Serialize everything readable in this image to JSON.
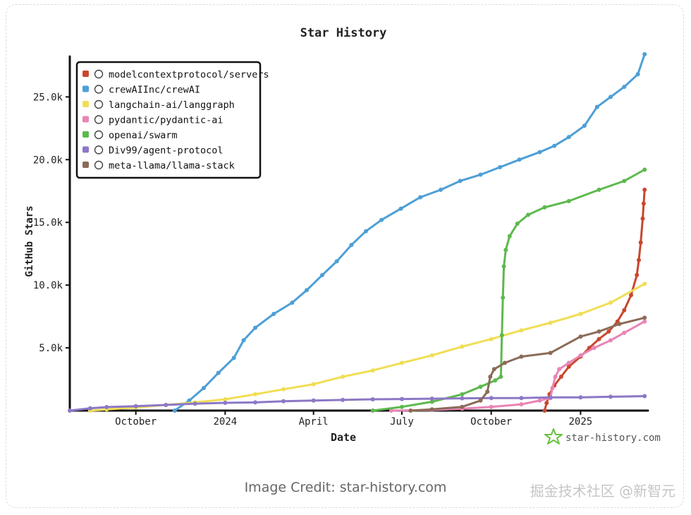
{
  "page": {
    "credit": "Image Credit: star-history.com",
    "watermark": "掘金技术社区 @新智元"
  },
  "brand": {
    "label": "star-history.com",
    "color": "#6ac144"
  },
  "chart_data": {
    "type": "line",
    "title": "Star History",
    "xlabel": "Date",
    "ylabel": "GitHub Stars",
    "x_unit": "date",
    "xlim": [
      "2023-07-25",
      "2025-03-10"
    ],
    "ylim": [
      0,
      28000
    ],
    "y_ticks": [
      5000,
      10000,
      15000,
      20000,
      25000
    ],
    "y_tick_labels": [
      "5.0k",
      "10.0k",
      "15.0k",
      "20.0k",
      "25.0k"
    ],
    "x_ticks": [
      "2023-10-01",
      "2024-01-01",
      "2024-04-01",
      "2024-07-01",
      "2024-10-01",
      "2025-01-01"
    ],
    "x_tick_labels": [
      "October",
      "2024",
      "April",
      "July",
      "October",
      "2025"
    ],
    "grid": false,
    "legend_position": "top-left",
    "series": [
      {
        "name": "modelcontextprotocol/servers",
        "color": "#c9472e",
        "icon": "mcp-icon",
        "points": [
          [
            "2024-11-25",
            0
          ],
          [
            "2024-11-27",
            600
          ],
          [
            "2024-11-30",
            1300
          ],
          [
            "2024-12-05",
            2000
          ],
          [
            "2024-12-12",
            2700
          ],
          [
            "2024-12-20",
            3500
          ],
          [
            "2025-01-01",
            4300
          ],
          [
            "2025-01-10",
            5000
          ],
          [
            "2025-01-20",
            5700
          ],
          [
            "2025-01-30",
            6300
          ],
          [
            "2025-02-08",
            7100
          ],
          [
            "2025-02-15",
            8000
          ],
          [
            "2025-02-22",
            9200
          ],
          [
            "2025-02-28",
            10800
          ],
          [
            "2025-03-02",
            12000
          ],
          [
            "2025-03-04",
            13400
          ],
          [
            "2025-03-06",
            15300
          ],
          [
            "2025-03-07",
            16500
          ],
          [
            "2025-03-08",
            17600
          ]
        ]
      },
      {
        "name": "crewAIInc/crewAI",
        "color": "#4d9fd6",
        "icon": "crewai-icon",
        "points": [
          [
            "2023-11-10",
            0
          ],
          [
            "2023-11-25",
            800
          ],
          [
            "2023-12-10",
            1800
          ],
          [
            "2023-12-25",
            3000
          ],
          [
            "2024-01-10",
            4200
          ],
          [
            "2024-01-20",
            5600
          ],
          [
            "2024-02-01",
            6600
          ],
          [
            "2024-02-20",
            7700
          ],
          [
            "2024-03-10",
            8600
          ],
          [
            "2024-03-25",
            9600
          ],
          [
            "2024-04-10",
            10800
          ],
          [
            "2024-04-25",
            11900
          ],
          [
            "2024-05-10",
            13200
          ],
          [
            "2024-05-25",
            14300
          ],
          [
            "2024-06-10",
            15200
          ],
          [
            "2024-06-30",
            16100
          ],
          [
            "2024-07-20",
            17000
          ],
          [
            "2024-08-10",
            17600
          ],
          [
            "2024-08-30",
            18300
          ],
          [
            "2024-09-20",
            18800
          ],
          [
            "2024-10-10",
            19400
          ],
          [
            "2024-10-30",
            20000
          ],
          [
            "2024-11-20",
            20600
          ],
          [
            "2024-12-05",
            21100
          ],
          [
            "2024-12-20",
            21800
          ],
          [
            "2025-01-05",
            22700
          ],
          [
            "2025-01-18",
            24200
          ],
          [
            "2025-02-01",
            25000
          ],
          [
            "2025-02-15",
            25800
          ],
          [
            "2025-03-01",
            26800
          ],
          [
            "2025-03-08",
            28400
          ]
        ]
      },
      {
        "name": "langchain-ai/langgraph",
        "color": "#f0de55",
        "icon": "langgraph-icon",
        "points": [
          [
            "2023-08-15",
            0
          ],
          [
            "2023-09-01",
            100
          ],
          [
            "2023-10-01",
            250
          ],
          [
            "2023-11-01",
            450
          ],
          [
            "2023-12-01",
            650
          ],
          [
            "2024-01-01",
            900
          ],
          [
            "2024-02-01",
            1300
          ],
          [
            "2024-03-01",
            1700
          ],
          [
            "2024-04-01",
            2100
          ],
          [
            "2024-05-01",
            2700
          ],
          [
            "2024-06-01",
            3200
          ],
          [
            "2024-07-01",
            3800
          ],
          [
            "2024-08-01",
            4400
          ],
          [
            "2024-09-01",
            5100
          ],
          [
            "2024-10-01",
            5700
          ],
          [
            "2024-11-01",
            6400
          ],
          [
            "2024-12-01",
            7000
          ],
          [
            "2025-01-01",
            7700
          ],
          [
            "2025-02-01",
            8600
          ],
          [
            "2025-03-08",
            10100
          ]
        ]
      },
      {
        "name": "pydantic/pydantic-ai",
        "color": "#e885b5",
        "icon": "pydantic-icon",
        "points": [
          [
            "2024-06-20",
            0
          ],
          [
            "2024-08-01",
            50
          ],
          [
            "2024-09-01",
            150
          ],
          [
            "2024-10-01",
            300
          ],
          [
            "2024-11-01",
            500
          ],
          [
            "2024-11-20",
            800
          ],
          [
            "2024-12-01",
            1000
          ],
          [
            "2024-12-03",
            1800
          ],
          [
            "2024-12-06",
            2700
          ],
          [
            "2024-12-10",
            3300
          ],
          [
            "2024-12-20",
            3800
          ],
          [
            "2025-01-01",
            4400
          ],
          [
            "2025-01-15",
            5000
          ],
          [
            "2025-02-01",
            5600
          ],
          [
            "2025-02-15",
            6200
          ],
          [
            "2025-03-08",
            7100
          ]
        ]
      },
      {
        "name": "openai/swarm",
        "color": "#5db94e",
        "icon": "openai-icon",
        "points": [
          [
            "2024-06-01",
            0
          ],
          [
            "2024-07-01",
            300
          ],
          [
            "2024-08-01",
            700
          ],
          [
            "2024-09-01",
            1300
          ],
          [
            "2024-09-20",
            1900
          ],
          [
            "2024-10-05",
            2400
          ],
          [
            "2024-10-11",
            2700
          ],
          [
            "2024-10-12",
            6000
          ],
          [
            "2024-10-13",
            9000
          ],
          [
            "2024-10-14",
            11500
          ],
          [
            "2024-10-16",
            12800
          ],
          [
            "2024-10-20",
            13900
          ],
          [
            "2024-10-28",
            14900
          ],
          [
            "2024-11-08",
            15600
          ],
          [
            "2024-11-25",
            16200
          ],
          [
            "2024-12-20",
            16700
          ],
          [
            "2025-01-20",
            17600
          ],
          [
            "2025-02-15",
            18300
          ],
          [
            "2025-03-08",
            19200
          ]
        ]
      },
      {
        "name": "Div99/agent-protocol",
        "color": "#8c78c6",
        "icon": "agent-protocol-icon",
        "points": [
          [
            "2023-07-25",
            0
          ],
          [
            "2023-08-15",
            180
          ],
          [
            "2023-09-01",
            280
          ],
          [
            "2023-10-01",
            350
          ],
          [
            "2023-11-01",
            450
          ],
          [
            "2023-12-01",
            550
          ],
          [
            "2024-01-01",
            620
          ],
          [
            "2024-02-01",
            650
          ],
          [
            "2024-03-01",
            750
          ],
          [
            "2024-04-01",
            800
          ],
          [
            "2024-05-01",
            850
          ],
          [
            "2024-06-01",
            900
          ],
          [
            "2024-07-01",
            920
          ],
          [
            "2024-08-01",
            950
          ],
          [
            "2024-09-01",
            980
          ],
          [
            "2024-10-01",
            1000
          ],
          [
            "2024-11-01",
            1000
          ],
          [
            "2024-12-01",
            1050
          ],
          [
            "2025-01-01",
            1050
          ],
          [
            "2025-02-01",
            1100
          ],
          [
            "2025-03-08",
            1150
          ]
        ]
      },
      {
        "name": "meta-llama/llama-stack",
        "color": "#8b6b57",
        "icon": "meta-icon",
        "points": [
          [
            "2024-07-10",
            0
          ],
          [
            "2024-08-01",
            100
          ],
          [
            "2024-09-01",
            300
          ],
          [
            "2024-09-20",
            800
          ],
          [
            "2024-09-27",
            1500
          ],
          [
            "2024-09-30",
            2700
          ],
          [
            "2024-10-04",
            3300
          ],
          [
            "2024-10-15",
            3800
          ],
          [
            "2024-11-01",
            4300
          ],
          [
            "2024-12-01",
            4600
          ],
          [
            "2025-01-01",
            5900
          ],
          [
            "2025-01-20",
            6300
          ],
          [
            "2025-02-10",
            6900
          ],
          [
            "2025-03-08",
            7400
          ]
        ]
      }
    ]
  }
}
